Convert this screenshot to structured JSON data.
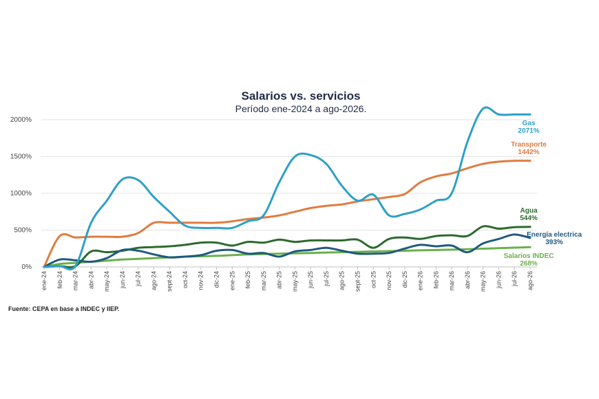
{
  "chart_data": {
    "type": "line",
    "title": "Salarios vs. servicios",
    "subtitle": "Período ene-2024 a ago-2026.",
    "source": "Fuente: CEPA en base a INDEC y IIEP.",
    "xlabel": "",
    "ylabel": "",
    "ylim": [
      0,
      2000
    ],
    "yticks": [
      "0%",
      "500%",
      "1000%",
      "1500%",
      "2000%"
    ],
    "ytick_values": [
      0,
      500,
      1000,
      1500,
      2000
    ],
    "grid": "horizontal",
    "categories": [
      "ene-24",
      "feb-24",
      "mar-24",
      "abr-24",
      "may-24",
      "jun-24",
      "jul-24",
      "ago-24",
      "sept-24",
      "oct-24",
      "nov-24",
      "dic-24",
      "ene-25",
      "feb-25",
      "mar-25",
      "abr-25",
      "may-25",
      "jun-25",
      "jul-25",
      "ago-25",
      "sept-25",
      "oct-25",
      "nov-25",
      "dic-25",
      "ene-26",
      "feb-26",
      "mar-26",
      "abr-26",
      "may-26",
      "jun-26",
      "jul-26",
      "ago-26"
    ],
    "series": [
      {
        "name": "Gas",
        "end_label": "2071%",
        "color": "#2e9fc9",
        "values": [
          0,
          10,
          10,
          600,
          900,
          1190,
          1180,
          950,
          750,
          560,
          530,
          530,
          530,
          620,
          700,
          1150,
          1500,
          1520,
          1400,
          1100,
          900,
          980,
          700,
          720,
          780,
          900,
          1000,
          1700,
          2150,
          2071,
          2071,
          2071
        ]
      },
      {
        "name": "Transporte",
        "end_label": "1442%",
        "color": "#e07b3f",
        "values": [
          0,
          420,
          400,
          410,
          410,
          410,
          460,
          600,
          600,
          600,
          600,
          600,
          620,
          650,
          670,
          700,
          750,
          800,
          830,
          850,
          890,
          920,
          950,
          990,
          1150,
          1230,
          1270,
          1340,
          1400,
          1430,
          1442,
          1442
        ]
      },
      {
        "name": "Agua",
        "end_label": "544%",
        "color": "#2b6a2e",
        "values": [
          0,
          10,
          10,
          210,
          200,
          220,
          260,
          270,
          280,
          300,
          330,
          330,
          290,
          340,
          330,
          370,
          340,
          360,
          360,
          360,
          370,
          260,
          380,
          400,
          380,
          420,
          430,
          420,
          550,
          520,
          540,
          544
        ]
      },
      {
        "name": "Energía electrica",
        "end_label": "393%",
        "color": "#1f5a7d",
        "values": [
          0,
          100,
          90,
          70,
          120,
          230,
          220,
          170,
          130,
          140,
          160,
          220,
          230,
          180,
          190,
          140,
          210,
          230,
          260,
          220,
          180,
          180,
          190,
          250,
          300,
          280,
          290,
          200,
          320,
          380,
          440,
          393
        ]
      },
      {
        "name": "Salarios INDEC",
        "end_label": "268%",
        "color": "#6ab04c",
        "values": [
          0,
          40,
          55,
          70,
          85,
          100,
          110,
          120,
          130,
          140,
          145,
          150,
          160,
          170,
          175,
          180,
          185,
          190,
          195,
          200,
          205,
          210,
          215,
          220,
          225,
          230,
          235,
          240,
          248,
          255,
          262,
          268
        ]
      }
    ]
  }
}
